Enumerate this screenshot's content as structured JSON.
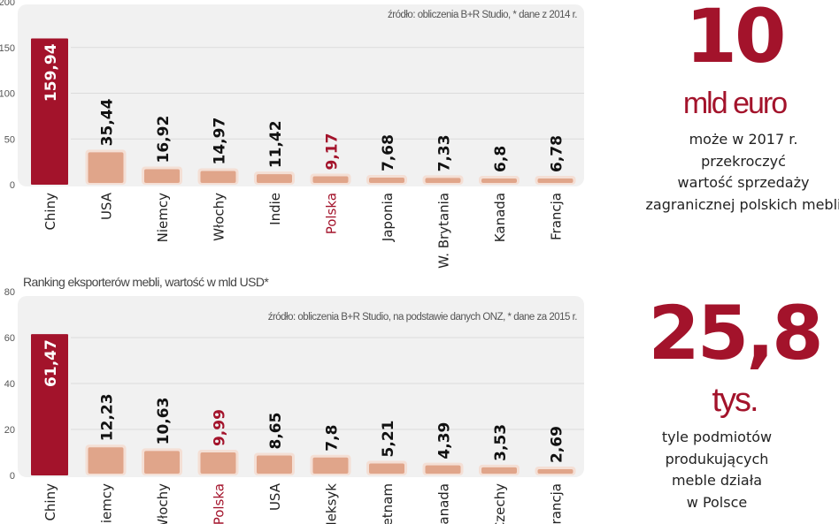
{
  "colors": {
    "highlight": "#a3132b",
    "bar": "#e0a58a",
    "bar_border": "#f4dfd5",
    "panel": "#f1f1f1",
    "grid": "#dcdcdc"
  },
  "chart_data": [
    {
      "type": "bar",
      "title": "",
      "source": "źródło: obliczenia B+R Studio, * dane z 2014 r.",
      "categories": [
        "Chiny",
        "USA",
        "Niemcy",
        "Włochy",
        "Indie",
        "Polska",
        "Japonia",
        "W. Brytania",
        "Kanada",
        "Francja"
      ],
      "values": [
        159.94,
        35.44,
        16.92,
        14.97,
        11.42,
        9.17,
        7.68,
        7.33,
        6.8,
        6.78
      ],
      "value_labels": [
        "159,94",
        "35,44",
        "16,92",
        "14,97",
        "11,42",
        "9,17",
        "7,68",
        "7,33",
        "6,8",
        "6,78"
      ],
      "highlight": [
        "Chiny",
        "Polska"
      ],
      "ylim": [
        0,
        200
      ],
      "yticks": [
        "0",
        "50",
        "100",
        "150",
        "200"
      ],
      "grid": true
    },
    {
      "type": "bar",
      "title": "Ranking eksporterów mebli, wartość w mld USD*",
      "source": "źródło: obliczenia B+R Studio, na podstawie danych ONZ, * dane za 2015 r.",
      "categories": [
        "Chiny",
        "Niemcy",
        "Włochy",
        "Polska",
        "USA",
        "Meksyk",
        "Wietnam",
        "Kanada",
        "Czechy",
        "Francja"
      ],
      "values": [
        61.47,
        12.23,
        10.63,
        9.99,
        8.65,
        7.8,
        5.21,
        4.39,
        3.53,
        2.69
      ],
      "value_labels": [
        "61,47",
        "12,23",
        "10,63",
        "9,99",
        "8,65",
        "7,8",
        "5,21",
        "4,39",
        "3,53",
        "2,69"
      ],
      "highlight": [
        "Chiny",
        "Polska"
      ],
      "ylim": [
        0,
        80
      ],
      "yticks": [
        "0",
        "20",
        "40",
        "60",
        "80"
      ],
      "grid": true
    }
  ],
  "facts": [
    {
      "number": "10",
      "unit": "mld euro",
      "lines": [
        "może w 2017 r.",
        "przekroczyć",
        "wartość sprzedaży",
        "zagranicznej polskich mebli"
      ]
    },
    {
      "number": "25,8",
      "unit": "tys.",
      "lines": [
        "tyle podmiotów",
        "produkujących",
        "meble działa",
        "w Polsce"
      ]
    }
  ]
}
